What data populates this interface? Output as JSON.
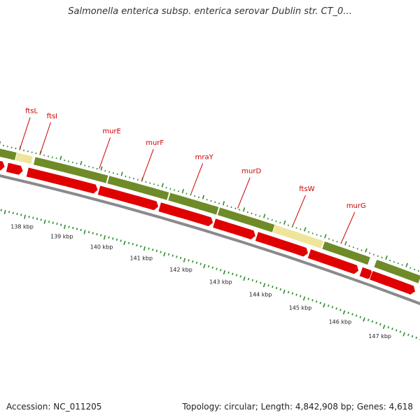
{
  "title": "Salmonella enterica subsp. enterica serovar Dublin str. CT_0...",
  "footer": {
    "accession": "Accession: NC_011205",
    "summary": "Topology: circular; Length: 4,842,908 bp; Genes: 4,618"
  },
  "colors": {
    "gene_label": "#cc0000",
    "feature_green": "#6e8b28",
    "feature_yellow": "#efe59a",
    "cds_red": "#e00000",
    "backbone": "#8a8a8a",
    "tick_green": "#2e8b2e"
  },
  "genes": [
    {
      "name": "ftsL",
      "pos": 137.5
    },
    {
      "name": "ftsI",
      "pos": 138.0
    },
    {
      "name": "murE",
      "pos": 139.45
    },
    {
      "name": "murF",
      "pos": 140.5
    },
    {
      "name": "mraY",
      "pos": 141.7
    },
    {
      "name": "murD",
      "pos": 142.85
    },
    {
      "name": "ftsW",
      "pos": 144.2
    },
    {
      "name": "murG",
      "pos": 145.4
    }
  ],
  "green_track": [
    {
      "type": "green",
      "start": 136.7,
      "end": 137.45
    },
    {
      "type": "yellow",
      "start": 137.45,
      "end": 137.85
    },
    {
      "type": "green",
      "start": 137.9,
      "end": 139.7
    },
    {
      "type": "green",
      "start": 139.72,
      "end": 141.2
    },
    {
      "type": "green",
      "start": 141.22,
      "end": 142.42
    },
    {
      "type": "green",
      "start": 142.44,
      "end": 143.8
    },
    {
      "type": "yellow",
      "start": 143.8,
      "end": 145.0
    },
    {
      "type": "green",
      "start": 145.02,
      "end": 146.15
    },
    {
      "type": "green",
      "start": 146.3,
      "end": 147.4
    }
  ],
  "cds_track": [
    {
      "start": 136.7,
      "end": 137.25
    },
    {
      "start": 137.3,
      "end": 137.7
    },
    {
      "start": 137.8,
      "end": 139.55
    },
    {
      "start": 139.57,
      "end": 141.05
    },
    {
      "start": 141.07,
      "end": 142.4
    },
    {
      "start": 142.42,
      "end": 143.45
    },
    {
      "start": 143.47,
      "end": 144.75
    },
    {
      "start": 144.77,
      "end": 146.0
    },
    {
      "start": 146.05,
      "end": 146.35
    },
    {
      "start": 146.3,
      "end": 147.4
    }
  ],
  "kbp_labels": [
    "138 kbp",
    "139 kbp",
    "140 kbp",
    "141 kbp",
    "142 kbp",
    "143 kbp",
    "144 kbp",
    "145 kbp",
    "146 kbp",
    "147 kbp"
  ]
}
